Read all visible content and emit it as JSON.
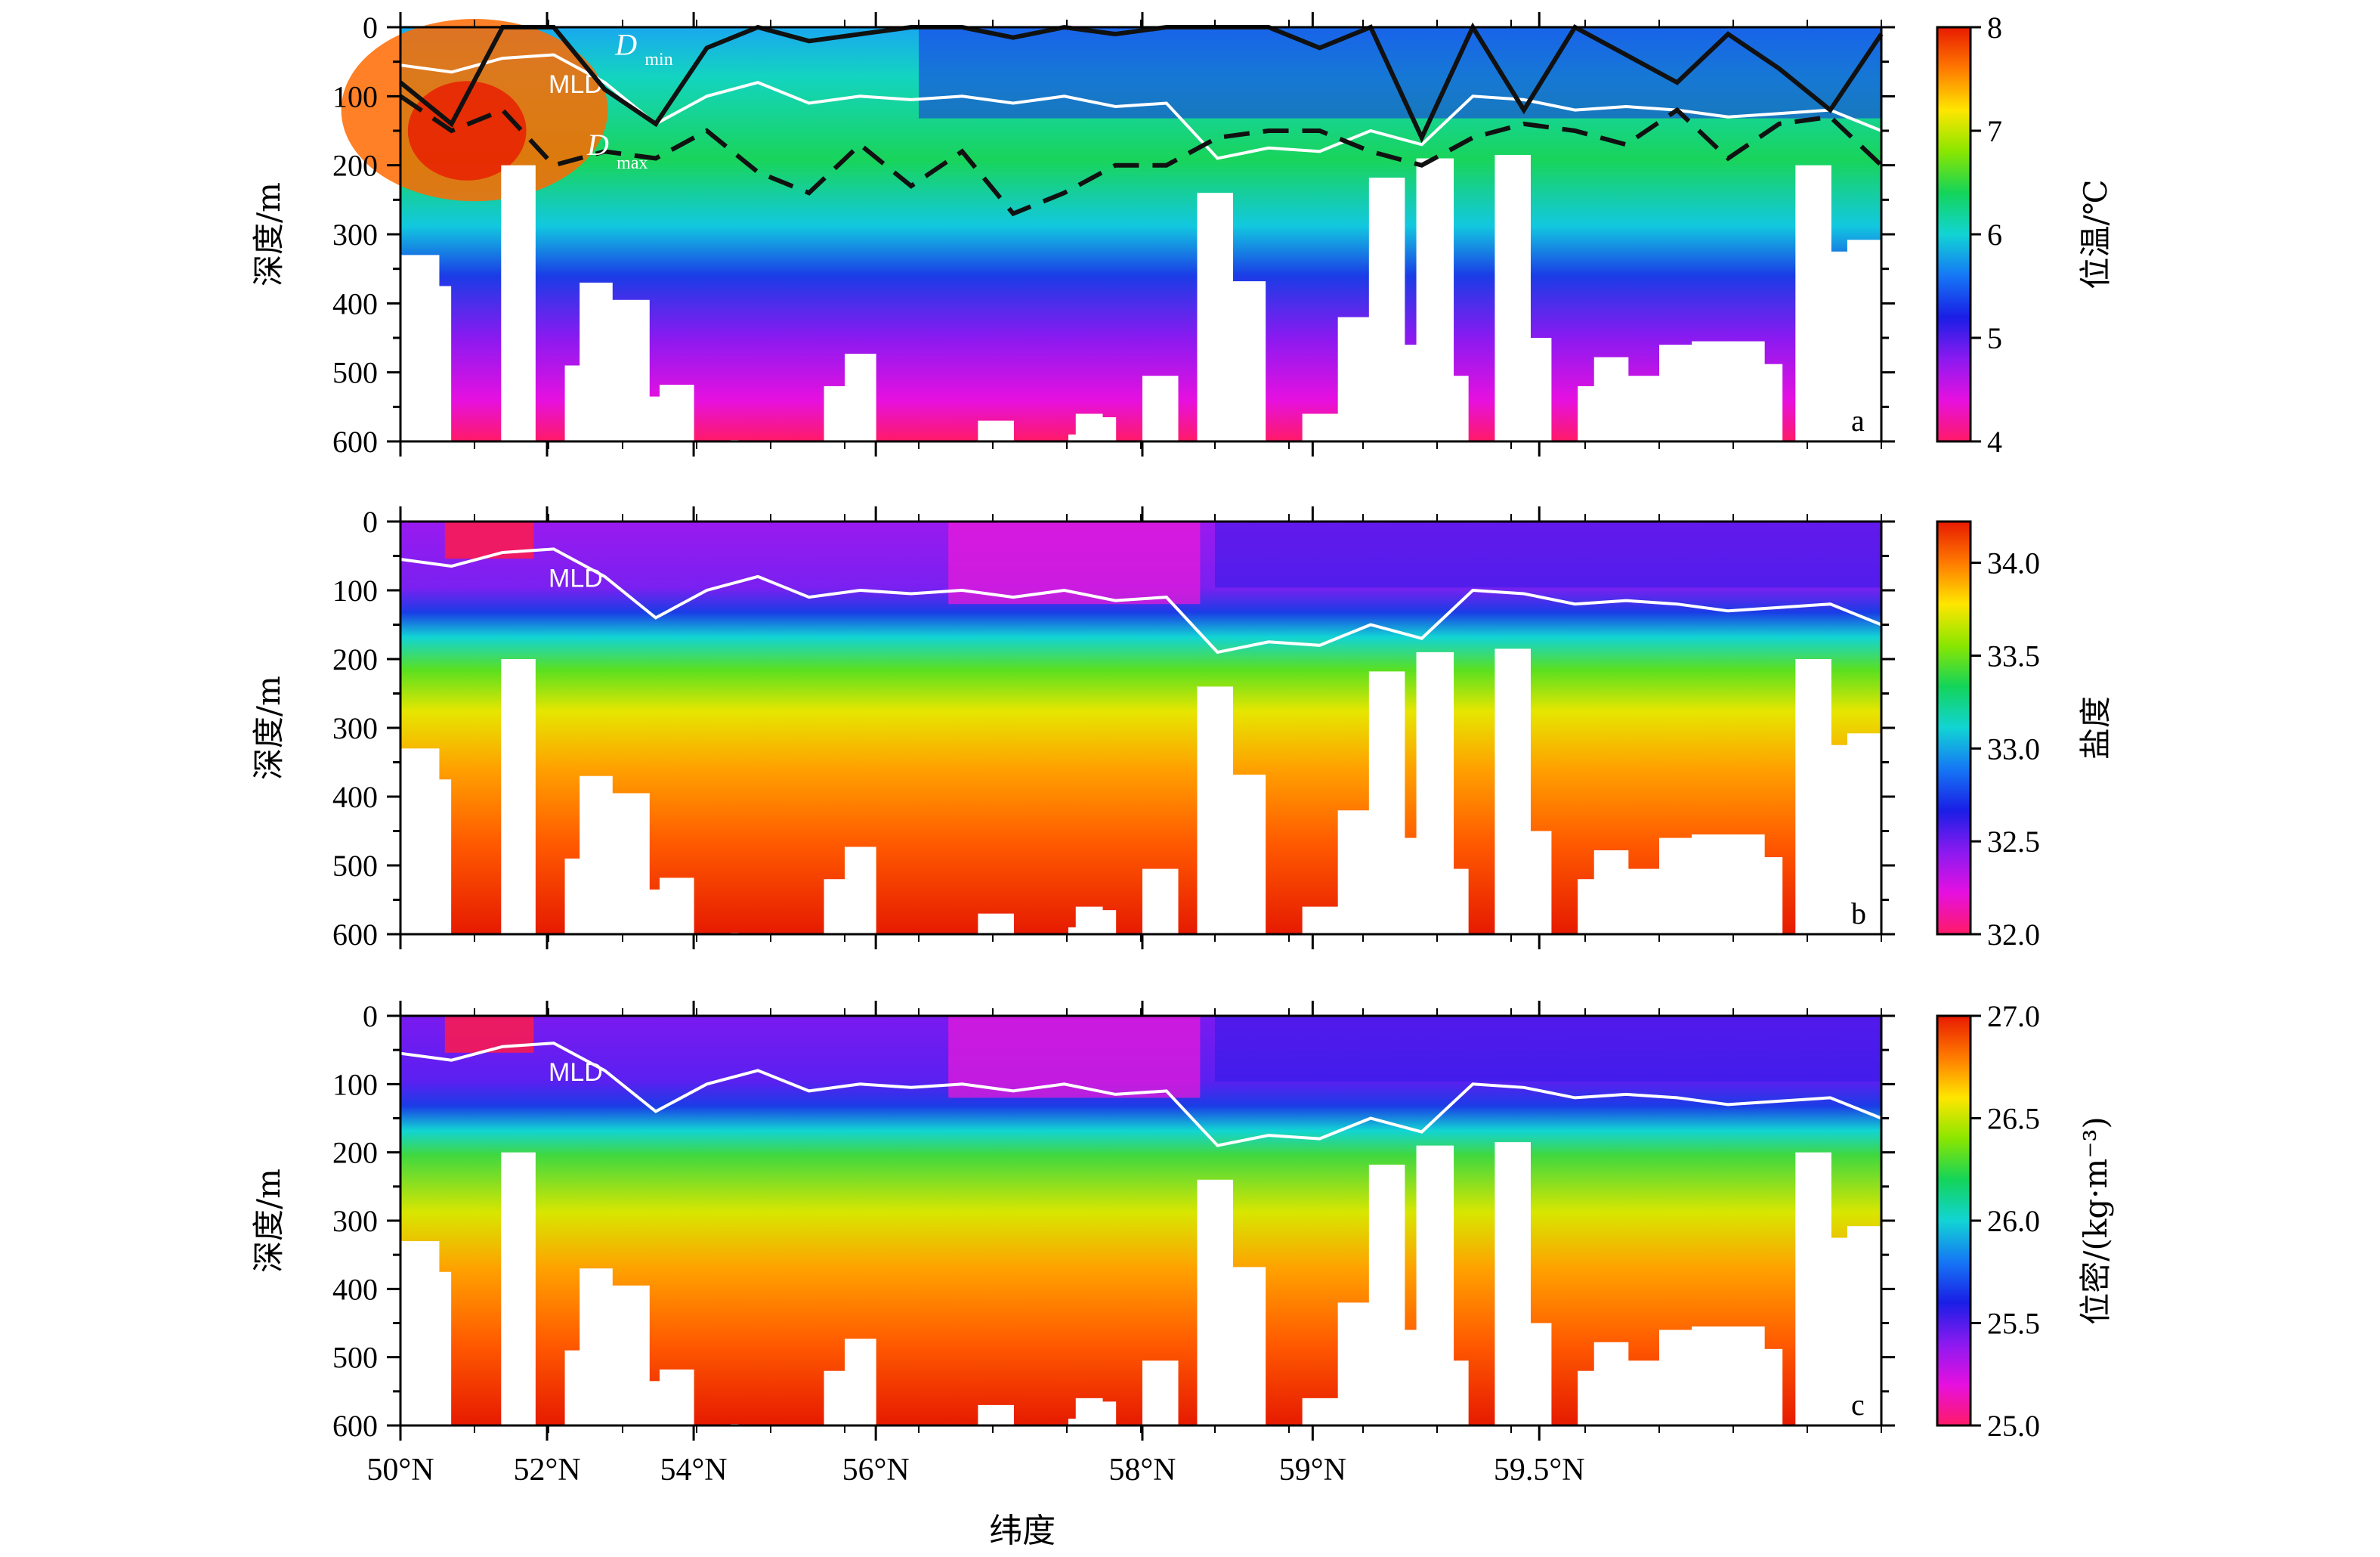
{
  "figure": {
    "panels_x_ticks": [
      "50°N",
      "52°N",
      "54°N",
      "56°N",
      "58°N",
      "59°N",
      "59.5°N"
    ],
    "x_axis_label": "纬度",
    "y_axis_label": "深度/m",
    "y_ticks": [
      "0",
      "100",
      "200",
      "300",
      "400",
      "500",
      "600"
    ]
  },
  "chart_data": [
    {
      "type": "heatmap",
      "panel_letter": "a",
      "xlabel": "",
      "ylabel": "深度/m",
      "ylim": [
        600,
        0
      ],
      "colorbar": {
        "label": "位温/℃",
        "ticks": [
          "8",
          "7",
          "6",
          "5",
          "4"
        ],
        "range": [
          4,
          8
        ],
        "colors_top_to_bottom": [
          "#e81a00",
          "#ff7a00",
          "#ffe600",
          "#8ae600",
          "#13d45a",
          "#12d4d4",
          "#1577f5",
          "#1a1ee6",
          "#8a1af0",
          "#e610e0",
          "#ff1a66"
        ]
      },
      "lines": [
        {
          "label": "MLD",
          "style": "white-solid"
        },
        {
          "label": "D",
          "subscript": "min",
          "style": "black-solid"
        },
        {
          "label": "D",
          "subscript": "max",
          "style": "black-dashed"
        }
      ],
      "mld_depth_m": [
        55,
        65,
        45,
        40,
        80,
        140,
        100,
        80,
        110,
        100,
        105,
        100,
        110,
        100,
        115,
        110,
        190,
        175,
        180,
        150,
        170,
        100,
        105,
        120,
        115,
        120,
        130,
        125,
        120,
        150
      ]
    },
    {
      "type": "heatmap",
      "panel_letter": "b",
      "xlabel": "",
      "ylabel": "深度/m",
      "ylim": [
        600,
        0
      ],
      "colorbar": {
        "label": "盐度",
        "ticks": [
          "34.0",
          "33.5",
          "33.0",
          "32.5",
          "32.0"
        ],
        "range": [
          32.0,
          34.2
        ],
        "colors_top_to_bottom": [
          "#e81a00",
          "#ff7a00",
          "#ffe600",
          "#8ae600",
          "#13d45a",
          "#12d4d4",
          "#1577f5",
          "#1a1ee6",
          "#8a1af0",
          "#e610e0",
          "#ff1a66"
        ]
      },
      "lines": [
        {
          "label": "MLD",
          "style": "white-solid"
        }
      ]
    },
    {
      "type": "heatmap",
      "panel_letter": "c",
      "xlabel": "纬度",
      "ylabel": "深度/m",
      "ylim": [
        600,
        0
      ],
      "colorbar": {
        "label": "位密/(kg·m⁻³)",
        "ticks": [
          "27.0",
          "26.5",
          "26.0",
          "25.5",
          "25.0"
        ],
        "range": [
          25.0,
          27.0
        ],
        "colors_top_to_bottom": [
          "#e81a00",
          "#ff7a00",
          "#ffe600",
          "#8ae600",
          "#13d45a",
          "#12d4d4",
          "#1577f5",
          "#1a1ee6",
          "#8a1af0",
          "#e610e0",
          "#ff1a66"
        ]
      },
      "lines": [
        {
          "label": "MLD",
          "style": "white-solid"
        }
      ]
    }
  ]
}
